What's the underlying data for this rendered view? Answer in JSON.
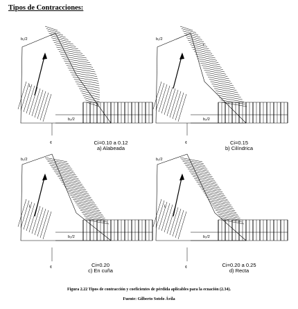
{
  "title": "Tipos de Contracciones:",
  "figures": [
    {
      "coef": "Ci=0.10 a 0.12",
      "name": "a) Alabeada"
    },
    {
      "coef": "Ci=0.15",
      "name": "b) Cilíndrica"
    },
    {
      "coef": "Ci=0.20",
      "name": "c) En cuña"
    },
    {
      "coef": "Ci=0.20 a 0.25",
      "name": "d) Recta"
    }
  ],
  "labels": {
    "b1": "b₁/2",
    "b2": "b₂/2",
    "L": "L",
    "r": "r"
  },
  "caption": "Figura 2.22 Tipos de contracción y coeficientes de pérdida aplicables para la ecuación (2.34).",
  "source": "Fuente: Gilberto Sotelo Ávila"
}
